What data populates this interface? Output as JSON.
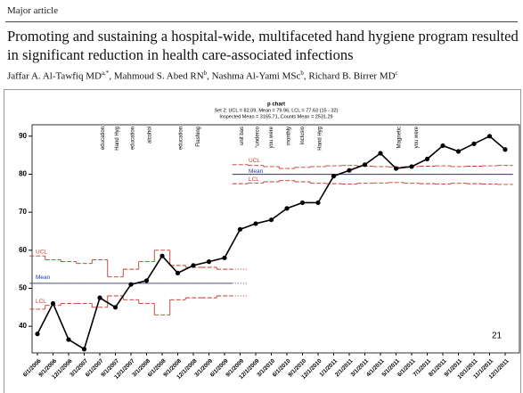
{
  "header": {
    "section": "Major article",
    "title": "Promoting and sustaining a hospital-wide, multifaceted hand hygiene program resulted in significant reduction in health care-associated infections",
    "authors": [
      {
        "name": "Jaffar A. Al-Tawfiq MD",
        "sup": "a,*"
      },
      {
        "name": "Mahmoud S. Abed RN",
        "sup": "b"
      },
      {
        "name": "Nashma Al-Yami MSc",
        "sup": "b"
      },
      {
        "name": "Richard B. Birrer MD",
        "sup": "c"
      }
    ]
  },
  "page_number": "21",
  "chart_data": {
    "type": "line",
    "title": "p chart",
    "subtitle": [
      "Set 2: UCL = 82.09, Mean = 79.96, LCL = 77.63 (15 - 32)",
      "Inspected Mean = 3165.71, Counts Mean = 2531.29"
    ],
    "categories": [
      "6/1/2006",
      "9/1/2006",
      "12/1/2006",
      "3/1/2007",
      "6/1/2007",
      "9/1/2007",
      "12/1/2007",
      "3/1/2008",
      "6/1/2008",
      "9/1/2008",
      "12/1/2008",
      "3/1/2009",
      "6/1/2009",
      "9/1/2009",
      "12/1/2009",
      "3/1/2010",
      "6/1/2010",
      "9/1/2010",
      "12/1/2010",
      "1/1/2011",
      "2/1/2011",
      "3/1/2011",
      "4/1/2011",
      "5/1/2011",
      "6/1/2011",
      "7/1/2011",
      "8/1/2011",
      "9/1/2011",
      "10/1/2011",
      "11/1/2011",
      "12/1/2011"
    ],
    "series": [
      {
        "name": "Compliance",
        "color": "#000000",
        "values": [
          38,
          46,
          36.5,
          34,
          47.5,
          45,
          51,
          52,
          58.5,
          54,
          56,
          57,
          58,
          65.5,
          67,
          68,
          71,
          72.5,
          72.5,
          79.5,
          81,
          82.5,
          85.5,
          81.5,
          82,
          84,
          87.5,
          86,
          88,
          90,
          86.5
        ]
      },
      {
        "name": "UCL",
        "color": "#c0392b",
        "values": [
          58.5,
          57.5,
          57,
          56.5,
          57.5,
          53,
          55,
          57,
          60,
          56,
          55.5,
          55.5,
          55,
          82.5,
          82.3,
          82,
          81.5,
          81.8,
          82,
          82.2,
          82.3,
          82.1,
          82,
          81.9,
          82,
          82.1,
          82.2,
          82,
          82.1,
          82.2,
          82.3
        ]
      },
      {
        "name": "Mean",
        "color": "#333366",
        "values": [
          51.3,
          51.3,
          51.3,
          51.3,
          51.3,
          51.3,
          51.3,
          51.3,
          51.3,
          51.3,
          51.3,
          51.3,
          51.3,
          79.96,
          79.96,
          79.96,
          79.96,
          79.96,
          79.96,
          79.96,
          79.96,
          79.96,
          79.96,
          79.96,
          79.96,
          79.96,
          79.96,
          79.96,
          79.96,
          79.96,
          79.96
        ]
      },
      {
        "name": "LCL",
        "color": "#c0392b",
        "values": [
          44.5,
          45.5,
          46,
          46,
          45,
          48,
          47,
          46,
          43,
          47,
          47.5,
          47.5,
          48,
          77.5,
          77.7,
          78,
          78.3,
          78,
          77.6,
          77.5,
          77.4,
          77.6,
          77.7,
          77.8,
          77.6,
          77.5,
          77.4,
          77.6,
          77.5,
          77.4,
          77.3
        ]
      }
    ],
    "limit_labels": [
      "UCL",
      "Mean",
      "LCL"
    ],
    "annotations": [
      "education",
      "Hand Hyg",
      "education",
      "alcohol",
      "education",
      "Flashing",
      "unit bas",
      "“underco",
      "you were",
      "monthly",
      "Inclusio",
      "Hand Hyg",
      "Magnetic",
      "you were"
    ],
    "ylim": [
      33,
      93
    ],
    "yticks": [
      40,
      50,
      60,
      70,
      80,
      90
    ]
  }
}
